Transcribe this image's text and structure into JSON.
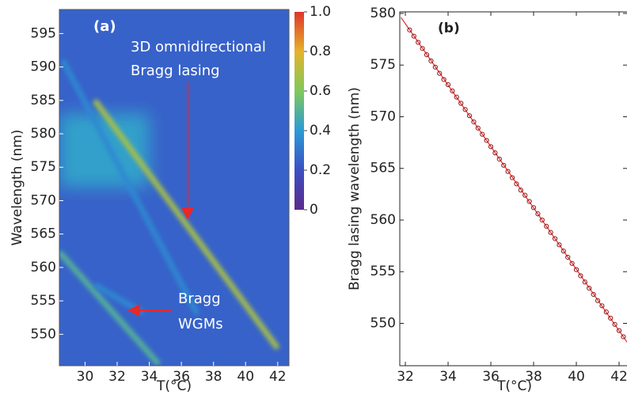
{
  "chart_data": [
    {
      "type": "heatmap",
      "label": "(a)",
      "xlabel": "T(°C)",
      "ylabel": "Wavelength (nm)",
      "xlim": [
        28.4,
        42.7
      ],
      "ylim": [
        545.3,
        598.6
      ],
      "xticks": [
        30,
        32,
        34,
        36,
        38,
        40,
        42
      ],
      "yticks": [
        550,
        555,
        560,
        565,
        570,
        575,
        580,
        585,
        590,
        595
      ],
      "zlim": [
        0,
        1
      ],
      "zticks": [
        0,
        0.2,
        0.4,
        0.6,
        0.8,
        {
          "value": 1,
          "label": "1.0"
        }
      ],
      "colorscale": [
        "#5b2a8c",
        "#3b4fc4",
        "#2a9bd6",
        "#7fc95a",
        "#e6b22a",
        "#e0352a"
      ],
      "background": 0.25,
      "regions": [
        {
          "x": [
            28.4,
            34
          ],
          "y": [
            572,
            583
          ],
          "z": 0.42
        }
      ],
      "ridges": [
        {
          "x": [
            30.6,
            42.0
          ],
          "y": [
            585,
            547.9
          ],
          "z": 0.68
        },
        {
          "x": [
            28.6,
            37.0
          ],
          "y": [
            591,
            553
          ],
          "z": 0.35
        },
        {
          "x": [
            28.4,
            34.6
          ],
          "y": [
            562.3,
            545.5
          ],
          "z": 0.5
        },
        {
          "x": [
            30.6,
            33.6
          ],
          "y": [
            557.4,
            553.2
          ],
          "z": 0.35
        }
      ],
      "annotations": [
        "3D omnidirectional",
        "Bragg lasing",
        "Bragg",
        "WGMs"
      ]
    },
    {
      "type": "scatter",
      "label": "(b)",
      "xlabel": "T(°C)",
      "ylabel": "Bragg lasing wavelength (nm)",
      "xlim": [
        31.74,
        42.37
      ],
      "ylim": [
        545.9,
        580.15
      ],
      "xticks": [
        32,
        34,
        36,
        38,
        40,
        42
      ],
      "yticks": [
        550,
        555,
        560,
        565,
        570,
        575,
        580
      ],
      "marker_color": "#8b1a1a",
      "fit_color": "#e8282a",
      "x": [
        32.2,
        32.4,
        32.6,
        32.8,
        33.0,
        33.2,
        33.4,
        33.6,
        33.8,
        34.0,
        34.2,
        34.4,
        34.6,
        34.8,
        35.0,
        35.2,
        35.4,
        35.6,
        35.8,
        36.0,
        36.2,
        36.4,
        36.6,
        36.8,
        37.0,
        37.2,
        37.4,
        37.6,
        37.8,
        38.0,
        38.2,
        38.4,
        38.6,
        38.8,
        39.0,
        39.2,
        39.4,
        39.6,
        39.8,
        40.0,
        40.2,
        40.4,
        40.6,
        40.8,
        41.0,
        41.2,
        41.4,
        41.6,
        41.8,
        42.0,
        42.2
      ],
      "y": [
        578.4,
        577.8,
        577.2,
        576.6,
        576.0,
        575.4,
        574.8,
        574.2,
        573.6,
        573.1,
        572.5,
        571.9,
        571.3,
        570.7,
        570.1,
        569.5,
        568.9,
        568.3,
        567.7,
        567.1,
        566.5,
        565.9,
        565.3,
        564.7,
        564.1,
        563.5,
        562.9,
        562.4,
        561.8,
        561.2,
        560.6,
        560.0,
        559.4,
        558.8,
        558.2,
        557.6,
        557.0,
        556.4,
        555.8,
        555.2,
        554.6,
        554.0,
        553.4,
        552.8,
        552.2,
        551.7,
        551.1,
        550.5,
        549.9,
        549.3,
        548.7
      ],
      "fit": {
        "x": [
          31.8,
          42.4
        ],
        "y": [
          579.6,
          548.1
        ]
      }
    }
  ]
}
